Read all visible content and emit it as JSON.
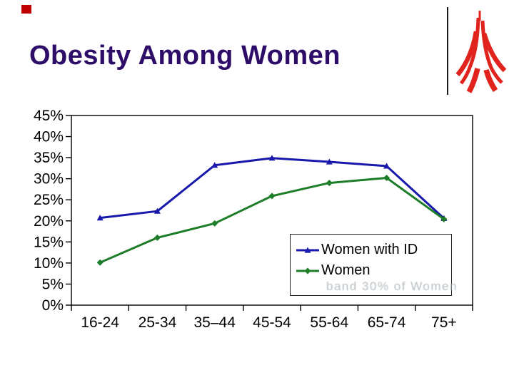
{
  "slide": {
    "title": "Obesity Among Women",
    "colors": {
      "title": "#2e0d69",
      "corner_mark": "#c00000",
      "logo_red": "#e0231c",
      "axis": "#000000",
      "background": "#ffffff"
    }
  },
  "legend": {
    "watermark_text": "band 30% of Women"
  },
  "chart_data": {
    "type": "line",
    "categories": [
      "16-24",
      "25-34",
      "35–44",
      "45-54",
      "55-64",
      "65-74",
      "75+"
    ],
    "series": [
      {
        "name": "Women with ID",
        "color": "#1818ac",
        "marker": "triangle",
        "values": [
          20.7,
          22.3,
          33.2,
          34.9,
          34.0,
          33.0,
          20.6
        ]
      },
      {
        "name": "Women",
        "color": "#1e7d28",
        "marker": "diamond",
        "values": [
          10.1,
          16.0,
          19.4,
          25.9,
          29.0,
          30.2,
          20.4
        ]
      }
    ],
    "title": "",
    "xlabel": "",
    "ylabel": "",
    "ylim": [
      0,
      45
    ],
    "y_tick_step": 5,
    "y_tick_labels": [
      "0%",
      "5%",
      "10%",
      "15%",
      "20%",
      "25%",
      "30%",
      "35%",
      "40%",
      "45%"
    ],
    "grid": false,
    "plot_border": true,
    "legend_position": "inside-bottom-right"
  }
}
